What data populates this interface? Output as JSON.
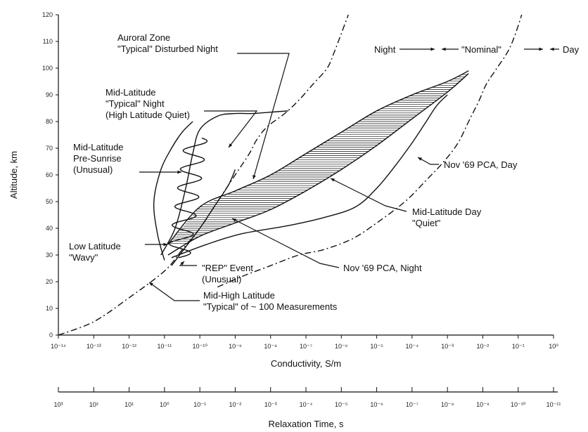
{
  "chart_data": {
    "type": "line",
    "xlabel": "Conductivity, S/m",
    "x2label": "Relaxation Time, s",
    "ylabel": "Altitude, km",
    "x_scale": "log",
    "xlim": [
      1e-14,
      1
    ],
    "ylim": [
      0,
      120
    ],
    "x_ticks": [
      "10⁻¹⁴",
      "10⁻¹³",
      "10⁻¹²",
      "10⁻¹¹",
      "10⁻¹⁰",
      "10⁻⁹",
      "10⁻⁸",
      "10⁻⁷",
      "10⁻⁶",
      "10⁻⁵",
      "10⁻⁴",
      "10⁻³",
      "10⁻²",
      "10⁻¹",
      "10⁰"
    ],
    "x2_ticks": [
      "10³",
      "10²",
      "10¹",
      "10⁰",
      "10⁻¹",
      "10⁻²",
      "10⁻³",
      "10⁻⁴",
      "10⁻⁵",
      "10⁻⁶",
      "10⁻⁷",
      "10⁻⁸",
      "10⁻⁹",
      "10⁻¹⁰",
      "10⁻¹¹"
    ],
    "y_ticks": [
      "0",
      "10",
      "20",
      "30",
      "40",
      "50",
      "60",
      "70",
      "80",
      "90",
      "100",
      "110",
      "120"
    ],
    "grid": false,
    "series": [
      {
        "id": "night_dashed",
        "style": "dash-dot",
        "x": [
          -14,
          -13,
          -12,
          -11,
          -10.5,
          -10,
          -9.5,
          -9,
          -8.6,
          -8.4,
          -8.1,
          -7.6,
          -7.2,
          -6.8,
          -6.4,
          -6.2,
          -6.0,
          -5.8
        ],
        "y": [
          0,
          5,
          14,
          24,
          32,
          40,
          50,
          60,
          68,
          73,
          78,
          83,
          88,
          94,
          100,
          106,
          113,
          120
        ]
      },
      {
        "id": "day_dashed",
        "style": "dash-dot",
        "x": [
          -9.5,
          -8.8,
          -8.0,
          -7.2,
          -6.5,
          -5.7,
          -5.0,
          -4.2,
          -3.6,
          -3.1,
          -2.7,
          -2.4,
          -2.1,
          -1.9,
          -1.6,
          -1.3,
          -1.1,
          -0.9
        ],
        "y": [
          18,
          22,
          26,
          30,
          32,
          36,
          42,
          50,
          58,
          65,
          72,
          80,
          88,
          94,
          100,
          106,
          112,
          120
        ]
      },
      {
        "id": "mid_latitude_typical_night",
        "x": [
          -11.1,
          -10.7,
          -10.4,
          -10.2,
          -10.0,
          -9.5,
          -9.0,
          -8.5,
          -8.0,
          -7.5
        ],
        "y": [
          30,
          40,
          55,
          68,
          77,
          82,
          83,
          83,
          83.5,
          84
        ]
      },
      {
        "id": "nov69_pca_day",
        "x": [
          -10.8,
          -9.8,
          -8.8,
          -7.5,
          -6.5,
          -5.6,
          -5.0,
          -4.5,
          -4.0,
          -3.6,
          -3.3,
          -3.0
        ],
        "y": [
          29,
          34,
          38,
          41,
          44,
          48,
          55,
          63,
          72,
          80,
          86,
          90
        ]
      },
      {
        "id": "mid_latitude_pre_sunrise",
        "x": [
          -11.0,
          -11.2,
          -11.3,
          -11.1,
          -10.8,
          -10.5,
          -10.2
        ],
        "y": [
          28,
          38,
          50,
          62,
          70,
          76,
          80
        ]
      },
      {
        "id": "rep_event",
        "x": [
          -10.8,
          -10.4,
          -10.0,
          -9.6,
          -9.2,
          -9.0
        ],
        "y": [
          26,
          33,
          40,
          48,
          56,
          62
        ]
      }
    ],
    "hatched_band": {
      "label": "Mid-Latitude Day \"Quiet\"",
      "lower": {
        "x": [
          -10.9,
          -10.0,
          -9.0,
          -8.0,
          -7.0,
          -6.0,
          -5.0,
          -4.0,
          -3.0,
          -2.4
        ],
        "y": [
          30,
          37,
          42,
          47,
          54,
          62,
          71,
          81,
          91,
          98
        ]
      },
      "upper": {
        "x": [
          -10.9,
          -10.0,
          -9.0,
          -8.0,
          -7.0,
          -6.0,
          -5.0,
          -4.0,
          -3.0,
          -2.4
        ],
        "y": [
          34,
          48,
          54,
          60,
          68,
          76,
          84,
          90,
          95,
          99
        ]
      }
    },
    "annotations": [
      {
        "id": "auroral-zone",
        "lines": [
          "Auroral Zone",
          "\"Typical\" Disturbed Night"
        ]
      },
      {
        "id": "mid-latitude-night",
        "lines": [
          "Mid-Latitude",
          "\"Typical\" Night",
          "(High Latitude Quiet)"
        ]
      },
      {
        "id": "pre-sunrise",
        "lines": [
          "Mid-Latitude",
          "Pre-Sunrise",
          "(Unusual)"
        ]
      },
      {
        "id": "low-latitude",
        "lines": [
          "Low Latitude",
          "\"Wavy\""
        ]
      },
      {
        "id": "rep-event",
        "lines": [
          "\"REP\" Event",
          "(Unusual)"
        ]
      },
      {
        "id": "mid-high-latitude",
        "lines": [
          "Mid-High Latitude",
          "\"Typical\" of ~ 100 Measurements"
        ]
      },
      {
        "id": "nov69-night",
        "lines": [
          "Nov '69 PCA, Night"
        ]
      },
      {
        "id": "mid-latitude-day",
        "lines": [
          "Mid-Latitude Day",
          "\"Quiet\""
        ]
      },
      {
        "id": "nov69-day",
        "lines": [
          "Nov '69 PCA, Day"
        ]
      },
      {
        "id": "night",
        "lines": [
          "Night"
        ]
      },
      {
        "id": "nominal",
        "lines": [
          "\"Nominal\""
        ]
      },
      {
        "id": "day",
        "lines": [
          "Day"
        ]
      }
    ]
  }
}
